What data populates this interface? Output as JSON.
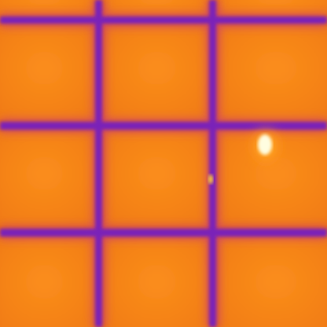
{
  "image": {
    "kind": "thermal-camera-view",
    "subject": "solar-panel-cells",
    "palette": "ironbow",
    "colors": {
      "cell_base": "#f07a12",
      "cell_warm": "#fb8e1c",
      "cell_cool": "#e5600c",
      "grid_line": "#7a22b8",
      "grid_glow": "#c0309c",
      "hotspot_core": "#fffde0",
      "hotspot_mid": "#ffd230",
      "hotspot_edge": "#ff9a1e"
    },
    "grid": {
      "columns": 3,
      "rows": 3
    },
    "hotspots": 1
  }
}
